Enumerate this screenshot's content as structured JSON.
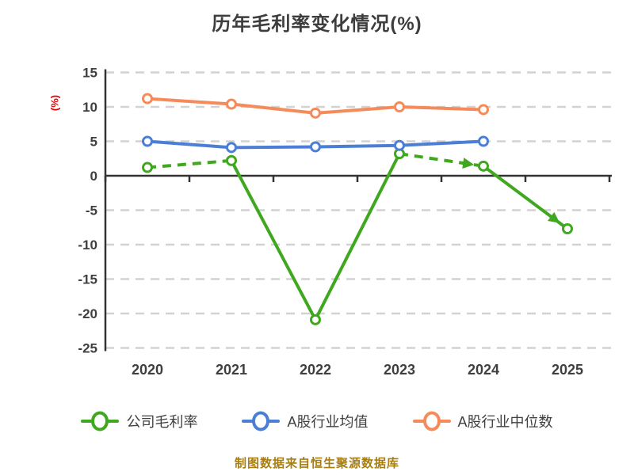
{
  "chart_data": {
    "type": "line",
    "title": "历年毛利率变化情况(%)",
    "ylabel": "(%)",
    "ylabel_color": "#e60000",
    "categories": [
      "2020",
      "2021",
      "2022",
      "2023",
      "2024",
      "2025"
    ],
    "series": [
      {
        "name": "公司毛利率",
        "color": "#3fa81e",
        "values": [
          1.2,
          2.2,
          -20.9,
          3.2,
          1.4,
          -7.7
        ],
        "dashed_segments": [
          0,
          3
        ],
        "arrow_segments": [
          3,
          4
        ]
      },
      {
        "name": "A股行业均值",
        "color": "#4b7fd6",
        "values": [
          5.0,
          4.1,
          4.2,
          4.4,
          5.0,
          null
        ]
      },
      {
        "name": "A股行业中位数",
        "color": "#f58a5a",
        "values": [
          11.2,
          10.4,
          9.1,
          10.0,
          9.6,
          null
        ]
      }
    ],
    "ylim": [
      -25,
      15
    ],
    "ytick_step": 5,
    "grid": "horizontal-dashed",
    "grid_color": "#d2d2d2",
    "axis_color": "#333333",
    "marker": "circle-white-fill",
    "legend_position": "bottom"
  },
  "footer": {
    "text": "制图数据来自恒生聚源数据库",
    "color": "#a87e10"
  }
}
